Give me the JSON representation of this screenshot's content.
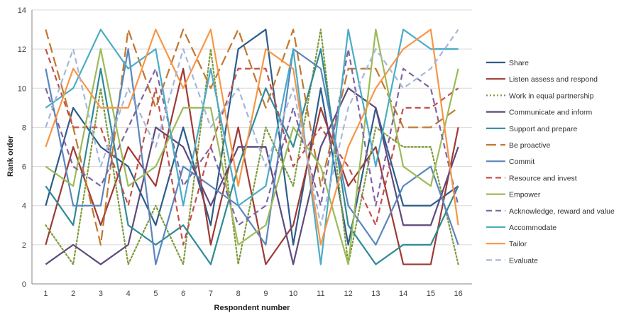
{
  "chart_data": {
    "type": "line",
    "title": "",
    "xlabel": "Respondent number",
    "ylabel": "Rank order",
    "x": [
      1,
      2,
      3,
      4,
      5,
      6,
      7,
      8,
      9,
      10,
      11,
      12,
      13,
      14,
      15,
      16
    ],
    "ylim": [
      0,
      14
    ],
    "yticks": [
      0,
      2,
      4,
      6,
      8,
      10,
      12,
      14
    ],
    "grid": "horizontal",
    "legend_position": "right",
    "series": [
      {
        "name": "Share",
        "color": "#2E5C8A",
        "dash": "solid",
        "values": [
          4,
          9,
          7,
          6,
          3,
          8,
          3,
          12,
          13,
          2,
          10,
          2,
          9,
          4,
          4,
          5
        ]
      },
      {
        "name": "Listen assess and respond",
        "color": "#9E3A36",
        "dash": "solid",
        "values": [
          2,
          7,
          3,
          7,
          5,
          11,
          2,
          8,
          1,
          3,
          9,
          5,
          7,
          1,
          1,
          8
        ]
      },
      {
        "name": "Work in equal partnership",
        "color": "#7F9A3C",
        "dash": "dotted",
        "values": [
          3,
          1,
          10,
          1,
          4,
          1,
          12,
          1,
          8,
          5,
          13,
          1,
          8,
          7,
          7,
          1
        ]
      },
      {
        "name": "Communicate and inform",
        "color": "#5E4A7D",
        "dash": "solid",
        "values": [
          1,
          2,
          1,
          2,
          8,
          7,
          4,
          7,
          7,
          1,
          7,
          10,
          9,
          3,
          3,
          7
        ]
      },
      {
        "name": "Support and prepare",
        "color": "#2E8A96",
        "dash": "solid",
        "values": [
          5,
          3,
          11,
          3,
          2,
          3,
          1,
          6,
          10,
          7,
          12,
          3,
          1,
          2,
          2,
          5
        ]
      },
      {
        "name": "Be proactive",
        "color": "#C0782F",
        "dash": "longdash",
        "values": [
          13,
          8,
          2,
          13,
          9,
          13,
          10,
          13,
          9,
          13,
          5,
          11,
          11,
          8,
          8,
          9
        ]
      },
      {
        "name": "Commit",
        "color": "#5A86BE",
        "dash": "solid",
        "values": [
          11,
          4,
          4,
          12,
          1,
          6,
          5,
          4,
          2,
          12,
          11,
          4,
          2,
          5,
          6,
          2
        ]
      },
      {
        "name": "Resource and invest",
        "color": "#C0504D",
        "dash": "dashed",
        "values": [
          12,
          8,
          8,
          4,
          10,
          2,
          7,
          11,
          11,
          6,
          8,
          6,
          3,
          9,
          9,
          10
        ]
      },
      {
        "name": "Empower",
        "color": "#9BBB59",
        "dash": "solid",
        "values": [
          6,
          5,
          12,
          5,
          6,
          9,
          9,
          2,
          3,
          8,
          6,
          1,
          13,
          6,
          5,
          11
        ]
      },
      {
        "name": "Acknowledge, reward and value",
        "color": "#8064A2",
        "dash": "dashed",
        "values": [
          10,
          6,
          5,
          8,
          11,
          5,
          7,
          3,
          4,
          9,
          4,
          12,
          4,
          11,
          10,
          4
        ]
      },
      {
        "name": "Accommodate",
        "color": "#4BACC6",
        "dash": "solid",
        "values": [
          9,
          10,
          13,
          11,
          12,
          4,
          11,
          4,
          5,
          12,
          1,
          13,
          6,
          13,
          12,
          12
        ]
      },
      {
        "name": "Tailor",
        "color": "#F79646",
        "dash": "solid",
        "values": [
          7,
          11,
          9,
          9,
          13,
          10,
          13,
          5,
          12,
          11,
          2,
          7,
          10,
          12,
          13,
          3
        ]
      },
      {
        "name": "Evaluate",
        "color": "#A5B7D9",
        "dash": "dashed",
        "values": [
          8,
          12,
          6,
          10,
          7,
          12,
          8,
          10,
          6,
          10,
          3,
          9,
          12,
          10,
          11,
          13
        ]
      }
    ]
  }
}
